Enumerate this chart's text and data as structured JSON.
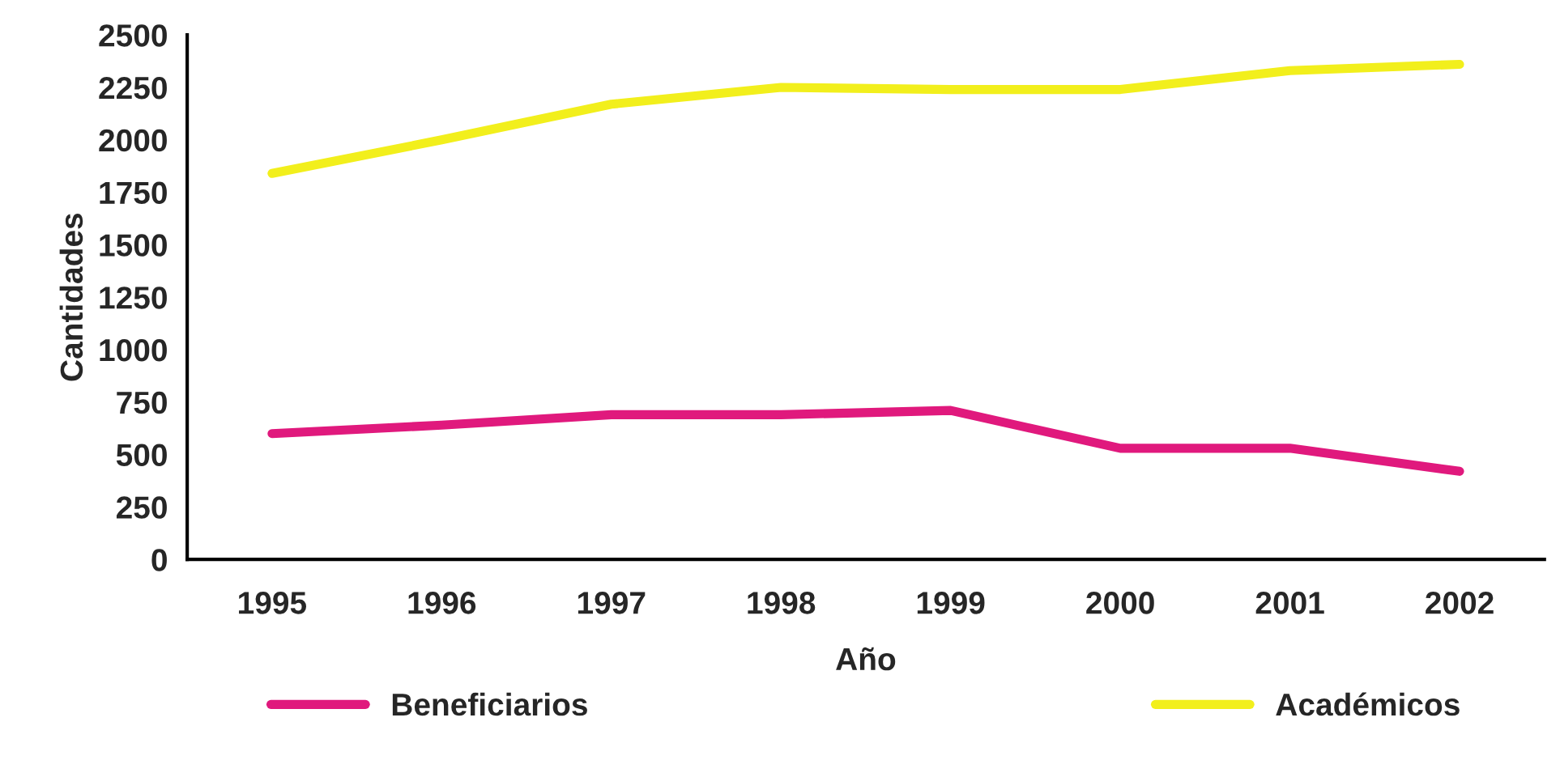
{
  "chart_data": {
    "type": "line",
    "xlabel": "Año",
    "ylabel": "Cantidades",
    "categories": [
      "1995",
      "1996",
      "1997",
      "1998",
      "1999",
      "2000",
      "2001",
      "2002"
    ],
    "series": [
      {
        "name": "Beneficiarios",
        "color": "#e0197d",
        "values": [
          600,
          640,
          690,
          690,
          710,
          530,
          530,
          420
        ]
      },
      {
        "name": "Académicos",
        "color": "#f2ef1c",
        "values": [
          1840,
          2000,
          2170,
          2250,
          2240,
          2240,
          2330,
          2360
        ]
      }
    ],
    "ylim": [
      0,
      2500
    ],
    "yticks": [
      0,
      250,
      500,
      750,
      1000,
      1250,
      1500,
      1750,
      2000,
      2250,
      2500
    ],
    "grid": false,
    "legend": "bottom",
    "marker": "none",
    "line_style": "solid"
  }
}
